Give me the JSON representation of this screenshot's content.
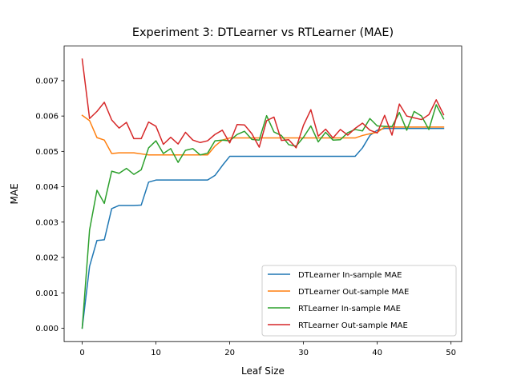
{
  "chart_data": {
    "type": "line",
    "title": "Experiment 3: DTLearner vs RTLearner (MAE)",
    "xlabel": "Leaf Size",
    "ylabel": "MAE",
    "xlim": [
      -2.45,
      51.45
    ],
    "ylim": [
      -0.00038,
      0.00798
    ],
    "xticks": [
      0,
      10,
      20,
      30,
      40,
      50
    ],
    "xtick_labels": [
      "0",
      "10",
      "20",
      "30",
      "40",
      "50"
    ],
    "yticks": [
      0.0,
      0.001,
      0.002,
      0.003,
      0.004,
      0.005,
      0.006,
      0.007
    ],
    "ytick_labels": [
      "0.000",
      "0.001",
      "0.002",
      "0.003",
      "0.004",
      "0.005",
      "0.006",
      "0.007"
    ],
    "grid": false,
    "legend_position": "lower-right",
    "x": [
      0,
      1,
      2,
      3,
      4,
      5,
      6,
      7,
      8,
      9,
      10,
      11,
      12,
      13,
      14,
      15,
      16,
      17,
      18,
      19,
      20,
      21,
      22,
      23,
      24,
      25,
      26,
      27,
      28,
      29,
      30,
      31,
      32,
      33,
      34,
      35,
      36,
      37,
      38,
      39,
      40,
      41,
      42,
      43,
      44,
      45,
      46,
      47,
      48,
      49
    ],
    "series": [
      {
        "name": "DTLearner In-sample MAE",
        "color": "#1f77b4",
        "values": [
          0.0,
          0.00175,
          0.00248,
          0.0025,
          0.00338,
          0.00347,
          0.00347,
          0.00347,
          0.00348,
          0.00413,
          0.00419,
          0.00419,
          0.00419,
          0.00419,
          0.00419,
          0.00419,
          0.00419,
          0.00419,
          0.00432,
          0.0046,
          0.00486,
          0.00486,
          0.00486,
          0.00486,
          0.00486,
          0.00486,
          0.00486,
          0.00486,
          0.00486,
          0.00486,
          0.00486,
          0.00486,
          0.00486,
          0.00486,
          0.00486,
          0.00486,
          0.00486,
          0.00486,
          0.0051,
          0.00545,
          0.0056,
          0.00565,
          0.00565,
          0.00565,
          0.00565,
          0.00565,
          0.00565,
          0.00565,
          0.00565,
          0.00565
        ]
      },
      {
        "name": "DTLearner Out-sample MAE",
        "color": "#ff7f0e",
        "values": [
          0.00602,
          0.00587,
          0.00539,
          0.00532,
          0.00494,
          0.00496,
          0.00496,
          0.00496,
          0.00493,
          0.0049,
          0.0049,
          0.0049,
          0.0049,
          0.0049,
          0.0049,
          0.0049,
          0.0049,
          0.0049,
          0.00515,
          0.00532,
          0.00538,
          0.00538,
          0.00538,
          0.00538,
          0.00538,
          0.00538,
          0.00538,
          0.00538,
          0.00538,
          0.00538,
          0.00538,
          0.00538,
          0.00538,
          0.00538,
          0.00538,
          0.00538,
          0.00538,
          0.00538,
          0.00545,
          0.0055,
          0.00554,
          0.00569,
          0.00569,
          0.00569,
          0.00569,
          0.00569,
          0.00569,
          0.00569,
          0.00569,
          0.00569
        ]
      },
      {
        "name": "RTLearner In-sample MAE",
        "color": "#2ca02c",
        "values": [
          0.0,
          0.00278,
          0.0039,
          0.00353,
          0.00444,
          0.00438,
          0.00452,
          0.00435,
          0.00448,
          0.0051,
          0.0053,
          0.00494,
          0.00508,
          0.00469,
          0.00503,
          0.00508,
          0.0049,
          0.00495,
          0.0053,
          0.00532,
          0.0053,
          0.00548,
          0.00557,
          0.00534,
          0.00532,
          0.00601,
          0.00555,
          0.00545,
          0.00519,
          0.00515,
          0.0054,
          0.00572,
          0.00527,
          0.00554,
          0.00532,
          0.00533,
          0.00553,
          0.00562,
          0.00558,
          0.00593,
          0.00572,
          0.00571,
          0.0057,
          0.0061,
          0.0056,
          0.00613,
          0.006,
          0.00562,
          0.00632,
          0.00592
        ]
      },
      {
        "name": "RTLearner Out-sample MAE",
        "color": "#d62728",
        "values": [
          0.00761,
          0.00593,
          0.00613,
          0.00639,
          0.00589,
          0.00566,
          0.00582,
          0.00536,
          0.00536,
          0.00583,
          0.00571,
          0.0052,
          0.0054,
          0.00521,
          0.00554,
          0.00532,
          0.00525,
          0.0053,
          0.00548,
          0.0056,
          0.00524,
          0.00576,
          0.00575,
          0.0055,
          0.00512,
          0.00587,
          0.00597,
          0.00531,
          0.00533,
          0.0051,
          0.00574,
          0.00618,
          0.00543,
          0.00563,
          0.00538,
          0.00562,
          0.00546,
          0.00565,
          0.0058,
          0.0056,
          0.00552,
          0.00602,
          0.00546,
          0.00634,
          0.006,
          0.00595,
          0.0059,
          0.00604,
          0.00646,
          0.00604
        ]
      }
    ]
  }
}
